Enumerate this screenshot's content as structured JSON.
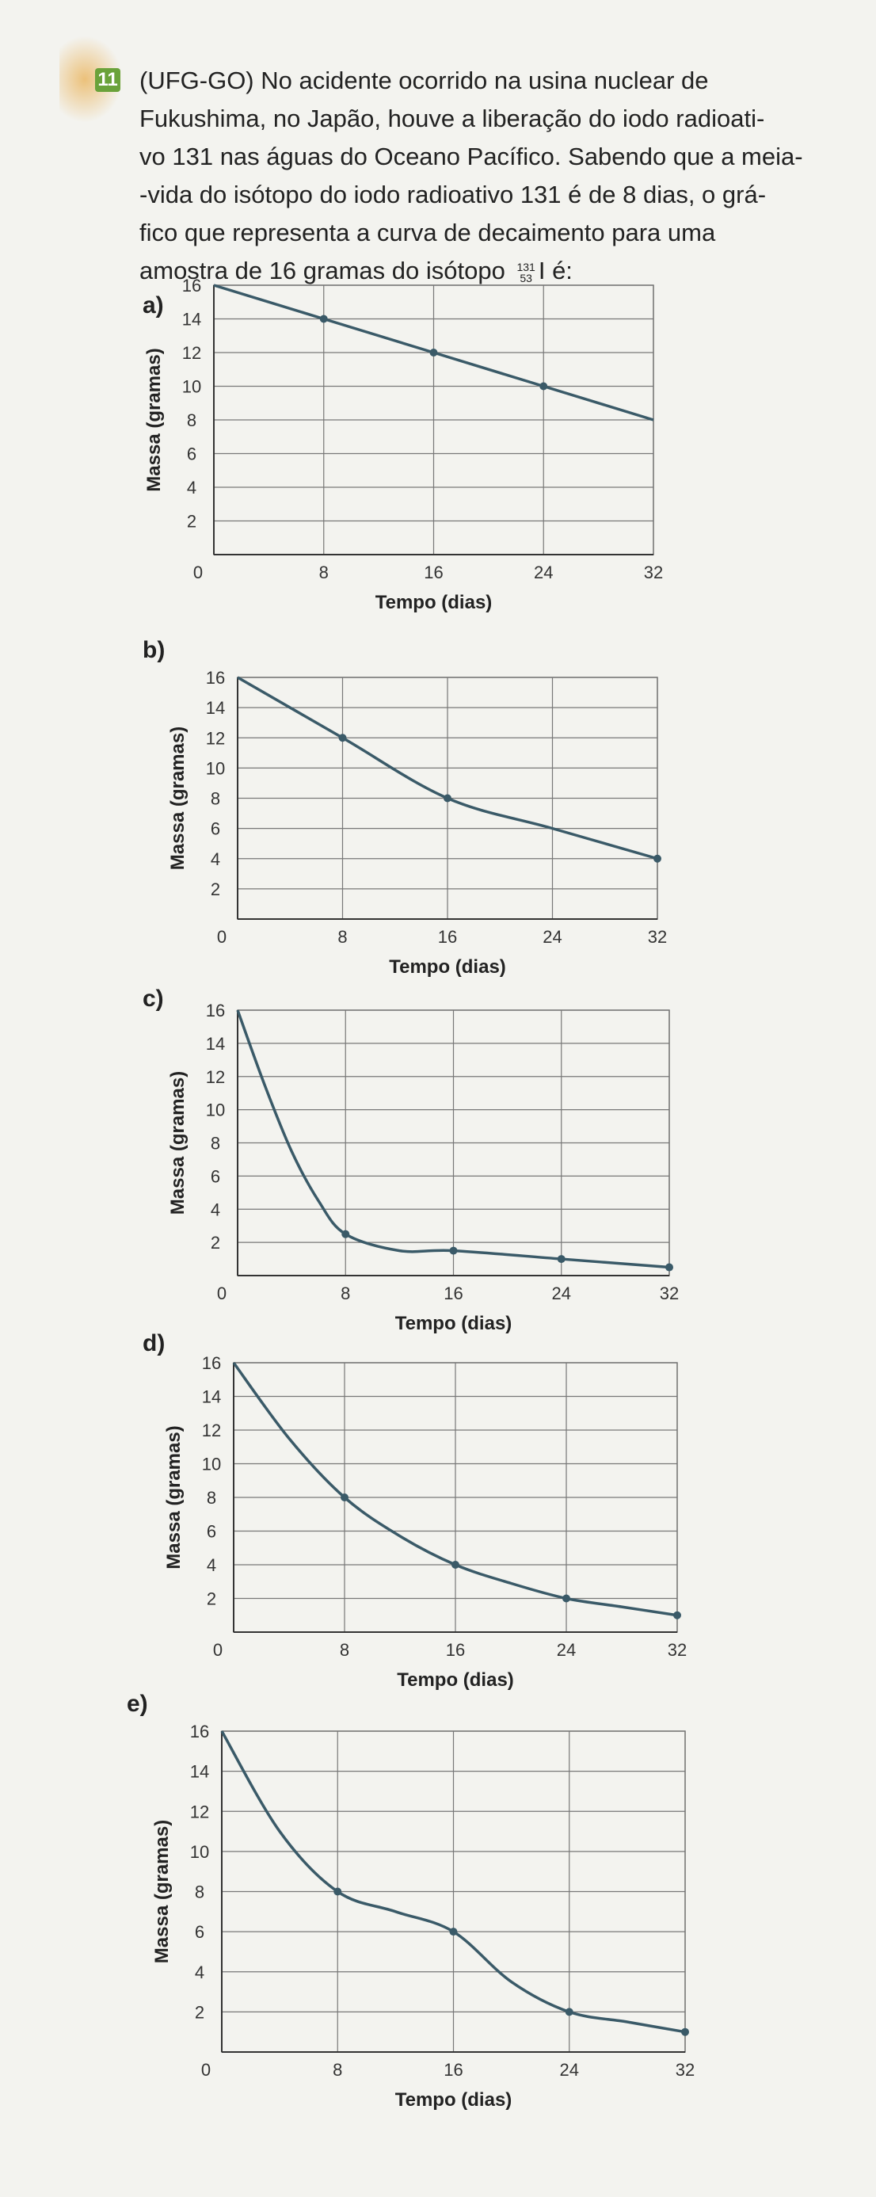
{
  "question": {
    "number": "11",
    "lines": [
      "(UFG-GO) No acidente ocorrido na usina nuclear de",
      "Fukushima, no Japão, houve a liberação do iodo radioati-",
      "vo 131 nas águas do Oceano Pacífico. Sabendo que a meia-",
      "-vida do isótopo do iodo radioativo 131 é de 8 dias, o grá-",
      "fico que representa a curva de decaimento para uma"
    ],
    "last_line_before": "amostra de 16 gramas do isótopo",
    "isotope_mass": "131",
    "isotope_atomic": "53",
    "isotope_symbol": "I",
    "last_line_after": "é:"
  },
  "colors": {
    "curve": "#3a5a68",
    "grid": "#777777",
    "text": "#222222",
    "badge": "#6aa23a"
  },
  "chart_data": [
    {
      "option": "a)",
      "type": "line",
      "xlabel": "Tempo (dias)",
      "ylabel": "Massa (gramas)",
      "x_ticks": [
        "0",
        "8",
        "16",
        "24",
        "32"
      ],
      "y_ticks": [
        "2",
        "4",
        "6",
        "8",
        "10",
        "12",
        "14",
        "16"
      ],
      "xlim": [
        0,
        32
      ],
      "ylim": [
        0,
        16
      ],
      "x": [
        0,
        8,
        16,
        24,
        32
      ],
      "y": [
        16,
        14,
        12,
        10,
        8
      ],
      "markers": [
        8,
        16,
        24
      ]
    },
    {
      "option": "b)",
      "type": "line",
      "xlabel": "Tempo (dias)",
      "ylabel": "Massa (gramas)",
      "x_ticks": [
        "0",
        "8",
        "16",
        "24",
        "32"
      ],
      "y_ticks": [
        "2",
        "4",
        "6",
        "8",
        "10",
        "12",
        "14",
        "16"
      ],
      "xlim": [
        0,
        32
      ],
      "ylim": [
        0,
        16
      ],
      "x": [
        0,
        8,
        16,
        24,
        32
      ],
      "y": [
        16,
        12,
        8,
        6,
        4
      ],
      "markers": [
        8,
        16,
        32
      ]
    },
    {
      "option": "c)",
      "type": "line",
      "xlabel": "Tempo (dias)",
      "ylabel": "Massa (gramas)",
      "x_ticks": [
        "0",
        "8",
        "16",
        "24",
        "32"
      ],
      "y_ticks": [
        "2",
        "4",
        "6",
        "8",
        "10",
        "12",
        "14",
        "16"
      ],
      "xlim": [
        0,
        32
      ],
      "ylim": [
        0,
        16
      ],
      "x": [
        0,
        2,
        4,
        6,
        8,
        12,
        16,
        24,
        32
      ],
      "y": [
        16,
        11.5,
        7.5,
        4.5,
        2.5,
        1.5,
        1.5,
        1.0,
        0.5
      ],
      "markers": [
        8,
        16,
        24,
        32
      ]
    },
    {
      "option": "d)",
      "type": "line",
      "xlabel": "Tempo (dias)",
      "ylabel": "Massa (gramas)",
      "x_ticks": [
        "0",
        "8",
        "16",
        "24",
        "32"
      ],
      "y_ticks": [
        "2",
        "4",
        "6",
        "8",
        "10",
        "12",
        "14",
        "16"
      ],
      "xlim": [
        0,
        32
      ],
      "ylim": [
        0,
        16
      ],
      "x": [
        0,
        4,
        8,
        12,
        16,
        20,
        24,
        28,
        32
      ],
      "y": [
        16,
        11.5,
        8,
        5.7,
        4,
        2.9,
        2,
        1.5,
        1
      ],
      "markers": [
        8,
        16,
        24,
        32
      ]
    },
    {
      "option": "e)",
      "type": "line",
      "xlabel": "Tempo (dias)",
      "ylabel": "Massa (gramas)",
      "x_ticks": [
        "0",
        "8",
        "16",
        "24",
        "32"
      ],
      "y_ticks": [
        "2",
        "4",
        "6",
        "8",
        "10",
        "12",
        "14",
        "16"
      ],
      "xlim": [
        0,
        32
      ],
      "ylim": [
        0,
        16
      ],
      "x": [
        0,
        4,
        8,
        12,
        16,
        20,
        24,
        28,
        32
      ],
      "y": [
        16,
        11,
        8,
        7,
        6,
        3.5,
        2,
        1.5,
        1
      ],
      "markers": [
        8,
        16,
        24,
        32
      ]
    }
  ]
}
